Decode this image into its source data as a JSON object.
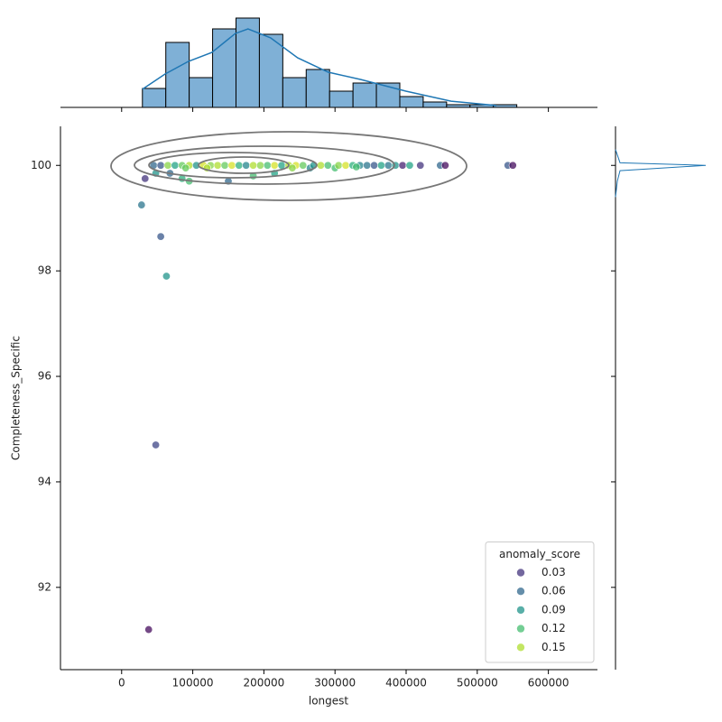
{
  "chart_data": {
    "type": "scatter",
    "xlabel": "longest",
    "ylabel": "Completeness_Specific",
    "xlim": [
      -86000,
      669000
    ],
    "ylim": [
      90.44,
      100.74
    ],
    "xticks": [
      0,
      100000,
      200000,
      300000,
      400000,
      500000,
      600000
    ],
    "yticks": [
      92,
      94,
      96,
      98,
      100
    ],
    "x": [
      38000,
      48000,
      63000,
      55000,
      28000,
      33000,
      150000,
      85000,
      95000,
      68000,
      48000,
      185000,
      215000,
      265000,
      300000,
      45000,
      55000,
      65000,
      75000,
      85000,
      95000,
      105000,
      115000,
      125000,
      135000,
      145000,
      155000,
      165000,
      175000,
      185000,
      195000,
      205000,
      215000,
      225000,
      235000,
      245000,
      255000,
      270000,
      280000,
      290000,
      305000,
      315000,
      325000,
      335000,
      345000,
      355000,
      365000,
      375000,
      385000,
      395000,
      405000,
      420000,
      448000,
      455000,
      543000,
      550000,
      90000,
      120000,
      240000,
      330000
    ],
    "y": [
      91.2,
      94.7,
      97.9,
      98.65,
      99.25,
      99.75,
      99.7,
      99.75,
      99.7,
      99.85,
      99.85,
      99.8,
      99.85,
      99.95,
      99.95,
      100,
      100,
      100,
      100,
      100,
      100,
      100,
      100,
      100,
      100,
      100,
      100,
      100,
      100,
      100,
      100,
      100,
      100,
      100,
      100,
      100,
      100,
      100,
      100,
      100,
      100,
      100,
      100,
      100,
      100,
      100,
      100,
      100,
      100,
      100,
      100,
      100,
      100,
      100,
      100,
      100,
      99.95,
      99.95,
      99.95,
      99.97
    ],
    "hue": [
      0.01,
      0.04,
      0.09,
      0.05,
      0.07,
      0.03,
      0.06,
      0.11,
      0.12,
      0.06,
      0.09,
      0.12,
      0.1,
      0.08,
      0.12,
      0.06,
      0.05,
      0.14,
      0.1,
      0.13,
      0.15,
      0.09,
      0.16,
      0.14,
      0.15,
      0.13,
      0.16,
      0.11,
      0.08,
      0.15,
      0.14,
      0.12,
      0.16,
      0.1,
      0.15,
      0.16,
      0.13,
      0.09,
      0.15,
      0.12,
      0.14,
      0.16,
      0.11,
      0.08,
      0.07,
      0.05,
      0.1,
      0.07,
      0.09,
      0.02,
      0.1,
      0.03,
      0.06,
      0.01,
      0.05,
      0.01,
      0.13,
      0.15,
      0.14,
      0.12
    ],
    "hue_title": "anomaly_score",
    "hue_norm": [
      0.005,
      0.17
    ],
    "palette": [
      "#440154",
      "#482878",
      "#3e4989",
      "#31688e",
      "#26828e",
      "#1f9e89",
      "#35b779",
      "#6ece58",
      "#b5de2b",
      "#fde725"
    ],
    "legend": [
      0.03,
      0.06,
      0.09,
      0.12,
      0.15
    ],
    "legend_loc": "lower right",
    "marginal_x": {
      "type": "histogram",
      "color": "#7fb0d6",
      "line_color": "#1f77b4",
      "bins": [
        29200,
        62100,
        95000,
        127900,
        160800,
        193700,
        226600,
        259500,
        292400,
        325300,
        358200,
        391100,
        424000,
        456900,
        489800,
        522700,
        555600
      ],
      "counts": [
        7,
        24,
        11,
        29,
        33,
        27,
        11,
        14,
        6,
        9,
        9,
        4,
        2,
        1,
        1,
        1
      ],
      "ylim": [
        0,
        34
      ],
      "kde": {
        "x": [
          29200,
          60900,
          93900,
          126900,
          159900,
          177700,
          209400,
          247500,
          290600,
          336300,
          399700,
          463200,
          526600
        ],
        "y": [
          6.7,
          12.3,
          17,
          20.3,
          27.3,
          29,
          25.7,
          18.3,
          13,
          10.3,
          6,
          2.3,
          0.7
        ]
      }
    },
    "marginal_y": {
      "line_color": "#1f77b4",
      "xlim": [
        0,
        1
      ],
      "kde": {
        "y": [
          99.4,
          99.7,
          99.9,
          100,
          100.05,
          100.3
        ],
        "density": [
          0,
          0.02,
          0.05,
          1,
          0.05,
          0
        ]
      }
    }
  }
}
